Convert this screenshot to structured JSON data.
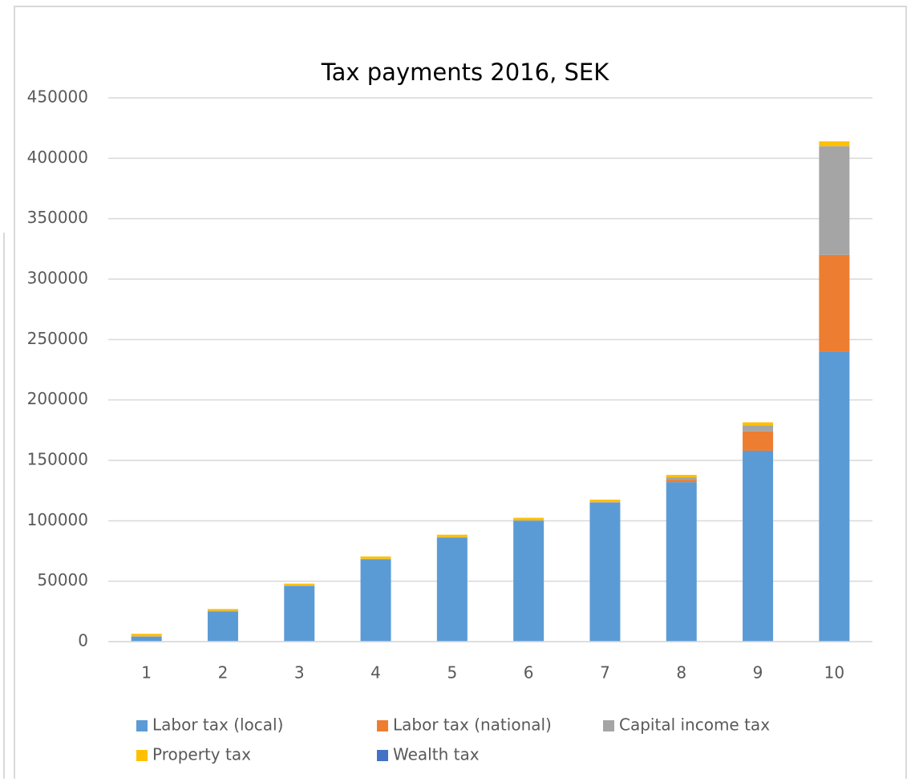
{
  "chart_data": {
    "type": "stacked_bar",
    "title": "Tax payments 2016, SEK",
    "categories": [
      "1",
      "2",
      "3",
      "4",
      "5",
      "6",
      "7",
      "8",
      "9",
      "10"
    ],
    "series": [
      {
        "name": "Labor tax (local)",
        "color": "#5b9bd5",
        "values": [
          4000,
          25000,
          46000,
          68000,
          86000,
          100000,
          115000,
          132000,
          158000,
          240000
        ]
      },
      {
        "name": "Labor tax (national)",
        "color": "#ed7d31",
        "values": [
          0,
          0,
          0,
          0,
          0,
          0,
          0,
          2000,
          16000,
          80000
        ]
      },
      {
        "name": "Capital income tax",
        "color": "#a5a5a5",
        "values": [
          500,
          500,
          500,
          500,
          500,
          500,
          500,
          2000,
          5000,
          90000
        ]
      },
      {
        "name": "Property tax",
        "color": "#ffc000",
        "values": [
          2000,
          1500,
          1500,
          2000,
          2000,
          2000,
          2000,
          2000,
          2500,
          4000
        ]
      },
      {
        "name": "Wealth tax",
        "color": "#4472c4",
        "values": [
          0,
          0,
          0,
          0,
          0,
          0,
          0,
          0,
          0,
          0
        ]
      }
    ],
    "ylim": [
      0,
      450000
    ],
    "yticks": [
      0,
      50000,
      100000,
      150000,
      200000,
      250000,
      300000,
      350000,
      400000,
      450000
    ],
    "grid": true,
    "legend": "bottom"
  }
}
